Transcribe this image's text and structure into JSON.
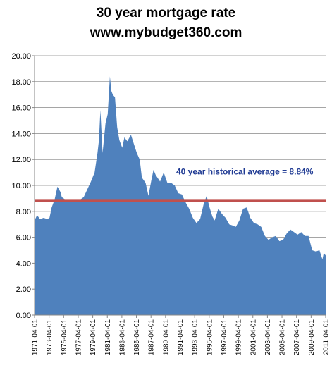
{
  "chart_data": {
    "type": "area",
    "title_line1": "30 year mortgage rate",
    "title_line2": "www.mybudget360.com",
    "xlabel": "",
    "ylabel": "",
    "ylim": [
      0,
      20
    ],
    "y_tick_step": 2,
    "y_tick_labels": [
      "0.00",
      "2.00",
      "4.00",
      "6.00",
      "8.00",
      "10.00",
      "12.00",
      "14.00",
      "16.00",
      "18.00",
      "20.00"
    ],
    "x_tick_labels": [
      "1971-04-01",
      "1973-04-01",
      "1975-04-01",
      "1977-04-01",
      "1979-04-01",
      "1981-04-01",
      "1983-04-01",
      "1985-04-01",
      "1987-04-01",
      "1989-04-01",
      "1991-04-01",
      "1993-04-01",
      "1995-04-01",
      "1997-04-01",
      "1999-04-01",
      "2001-04-01",
      "2003-04-01",
      "2005-04-01",
      "2007-04-01",
      "2009-04-01",
      "2011-04-01"
    ],
    "grid": "horizontal",
    "area_color": "#4f81bd",
    "series": [
      {
        "x": [
          1971.25,
          1971.6,
          1972.0,
          1972.5,
          1973.0,
          1973.3,
          1973.6,
          1974.0,
          1974.4,
          1974.8,
          1975.0,
          1975.5,
          1976.0,
          1976.5,
          1977.0,
          1977.5,
          1978.0,
          1978.5,
          1979.0,
          1979.5,
          1979.9,
          1980.1,
          1980.3,
          1980.6,
          1981.0,
          1981.3,
          1981.6,
          1981.8,
          1982.0,
          1982.3,
          1982.6,
          1982.9,
          1983.3,
          1983.6,
          1984.0,
          1984.5,
          1984.9,
          1985.3,
          1985.7,
          1986.0,
          1986.5,
          1986.9,
          1987.3,
          1987.6,
          1987.9,
          1988.5,
          1989.0,
          1989.5,
          1990.0,
          1990.5,
          1991.0,
          1991.5,
          1992.0,
          1992.5,
          1993.0,
          1993.5,
          1994.0,
          1994.5,
          1994.9,
          1995.3,
          1995.7,
          1996.0,
          1996.5,
          1997.0,
          1997.5,
          1998.0,
          1998.5,
          1998.9,
          1999.4,
          1999.9,
          2000.4,
          2000.9,
          2001.4,
          2001.9,
          2002.4,
          2002.9,
          2003.4,
          2003.9,
          2004.4,
          2004.9,
          2005.4,
          2005.9,
          2006.4,
          2006.9,
          2007.4,
          2007.9,
          2008.4,
          2008.9,
          2009.4,
          2009.9,
          2010.4,
          2010.8,
          2011.0,
          2011.25
        ],
        "values": [
          7.3,
          7.7,
          7.4,
          7.5,
          7.4,
          7.5,
          8.3,
          8.9,
          9.9,
          9.5,
          9.1,
          8.9,
          8.8,
          8.8,
          8.7,
          8.9,
          9.1,
          9.7,
          10.3,
          11.0,
          12.5,
          13.5,
          15.8,
          12.5,
          14.8,
          15.5,
          18.4,
          17.3,
          17.0,
          16.8,
          14.5,
          13.5,
          12.9,
          13.7,
          13.4,
          13.9,
          13.2,
          12.5,
          12.0,
          10.6,
          10.2,
          9.2,
          10.4,
          11.2,
          10.8,
          10.3,
          11.0,
          10.2,
          10.2,
          10.0,
          9.4,
          9.3,
          8.7,
          8.2,
          7.5,
          7.1,
          7.4,
          8.6,
          9.2,
          8.3,
          7.6,
          7.3,
          8.2,
          7.8,
          7.5,
          7.0,
          6.9,
          6.8,
          7.3,
          8.2,
          8.3,
          7.5,
          7.1,
          7.0,
          6.8,
          6.1,
          5.8,
          6.0,
          6.1,
          5.7,
          5.8,
          6.3,
          6.6,
          6.4,
          6.2,
          6.4,
          6.1,
          6.1,
          5.0,
          4.9,
          5.0,
          4.3,
          4.8,
          4.6
        ]
      }
    ],
    "average_line": {
      "value": 8.84,
      "label": "40 year historical average = 8.84%",
      "color": "#c0504d"
    }
  }
}
